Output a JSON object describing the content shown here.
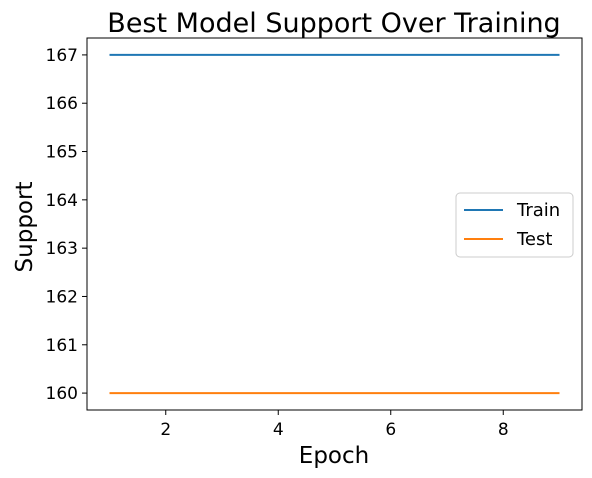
{
  "chart_data": {
    "type": "line",
    "title": "Best Model Support Over Training",
    "xlabel": "Epoch",
    "ylabel": "Support",
    "x": [
      1,
      2,
      3,
      4,
      5,
      6,
      7,
      8,
      9
    ],
    "xlim": [
      0.6,
      9.4
    ],
    "ylim": [
      159.65,
      167.35
    ],
    "xticks": [
      2,
      4,
      6,
      8
    ],
    "xtick_labels": [
      "2",
      "4",
      "6",
      "8"
    ],
    "yticks": [
      160,
      161,
      162,
      163,
      164,
      165,
      166,
      167
    ],
    "ytick_labels": [
      "160",
      "161",
      "162",
      "163",
      "164",
      "165",
      "166",
      "167"
    ],
    "grid": false,
    "legend_position": "center-right",
    "series": [
      {
        "name": "Train",
        "color": "#1f77b4",
        "values": [
          167,
          167,
          167,
          167,
          167,
          167,
          167,
          167,
          167
        ]
      },
      {
        "name": "Test",
        "color": "#ff7f0e",
        "values": [
          160,
          160,
          160,
          160,
          160,
          160,
          160,
          160,
          160
        ]
      }
    ]
  }
}
